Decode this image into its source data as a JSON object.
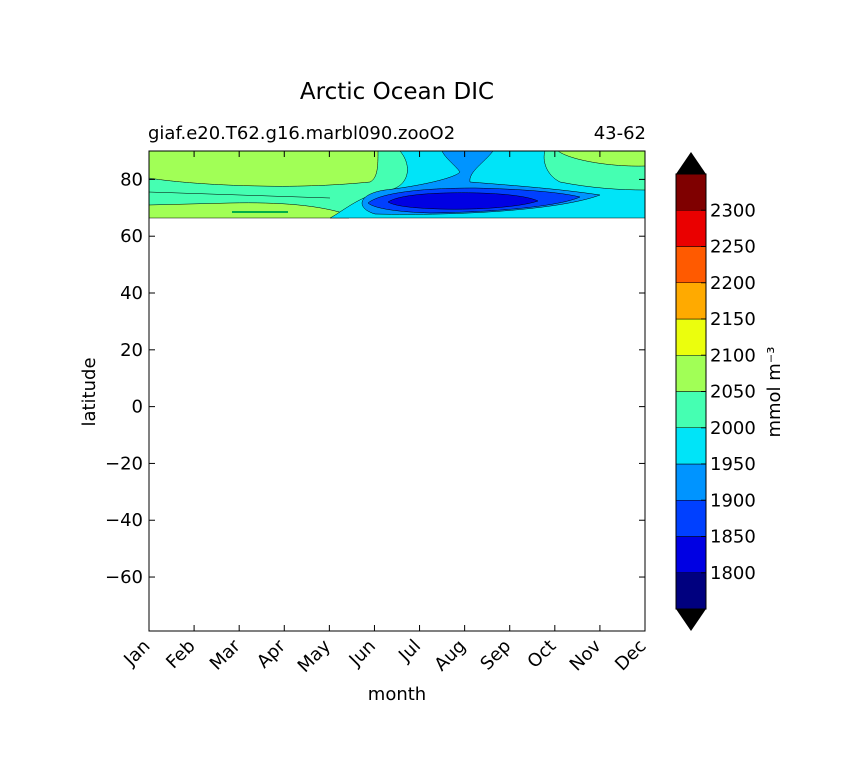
{
  "chart_data": {
    "type": "heatmap",
    "title": "Arctic Ocean DIC",
    "subtitle_left": "giaf.e20.T62.g16.marbl090.zooO2",
    "subtitle_right": "43-62",
    "xlabel": "month",
    "ylabel": "latitude",
    "x_ticks": [
      "Jan",
      "Feb",
      "Mar",
      "Apr",
      "May",
      "Jun",
      "Jul",
      "Aug",
      "Sep",
      "Oct",
      "Nov",
      "Dec"
    ],
    "ylim": [
      -79,
      90
    ],
    "y_ticks": [
      -60,
      -40,
      -20,
      0,
      20,
      40,
      60,
      80
    ],
    "y_tick_labels": [
      "−60",
      "−40",
      "−20",
      "0",
      "20",
      "40",
      "60",
      "80"
    ],
    "data_lat_range": [
      66,
      90
    ],
    "colorbar": {
      "label": "mmol m⁻³",
      "levels": [
        1750,
        1800,
        1850,
        1900,
        1950,
        2000,
        2050,
        2100,
        2150,
        2200,
        2250,
        2300,
        2350
      ],
      "tick_values": [
        1800,
        1850,
        1900,
        1950,
        2000,
        2050,
        2100,
        2150,
        2200,
        2250,
        2300
      ],
      "tick_labels": [
        "1800",
        "1850",
        "1900",
        "1950",
        "2000",
        "2050",
        "2100",
        "2150",
        "2200",
        "2250",
        "2300"
      ],
      "colors": [
        "#00007f",
        "#0000e3",
        "#0040ff",
        "#0094ff",
        "#00e4f8",
        "#45ffb2",
        "#a1ff56",
        "#ebfe0d",
        "#ffaa00",
        "#ff5a00",
        "#ea0000",
        "#7f0000"
      ],
      "under_color": "#000000",
      "over_color": "#000000",
      "extend": "both"
    },
    "approx_fields": [
      {
        "level": "2050-2100",
        "months": "Jan-Jun, Oct-Dec",
        "lat_range": [
          78,
          90
        ]
      },
      {
        "level": "2000-2050",
        "months": "Jan-Dec",
        "lat_range": [
          66,
          80
        ]
      },
      {
        "level": "1950-2000",
        "months": "Jun-Oct",
        "lat_range": [
          66,
          90
        ]
      },
      {
        "level": "1900-1950",
        "months": "Jul-Sep",
        "lat_range": [
          66,
          90
        ]
      },
      {
        "level": "1850-1900",
        "months": "Jul-Sep",
        "lat_range": [
          68,
          76
        ]
      },
      {
        "level": "1800-1850",
        "months": "Jul-Aug",
        "lat_range": [
          70,
          74
        ]
      }
    ]
  }
}
